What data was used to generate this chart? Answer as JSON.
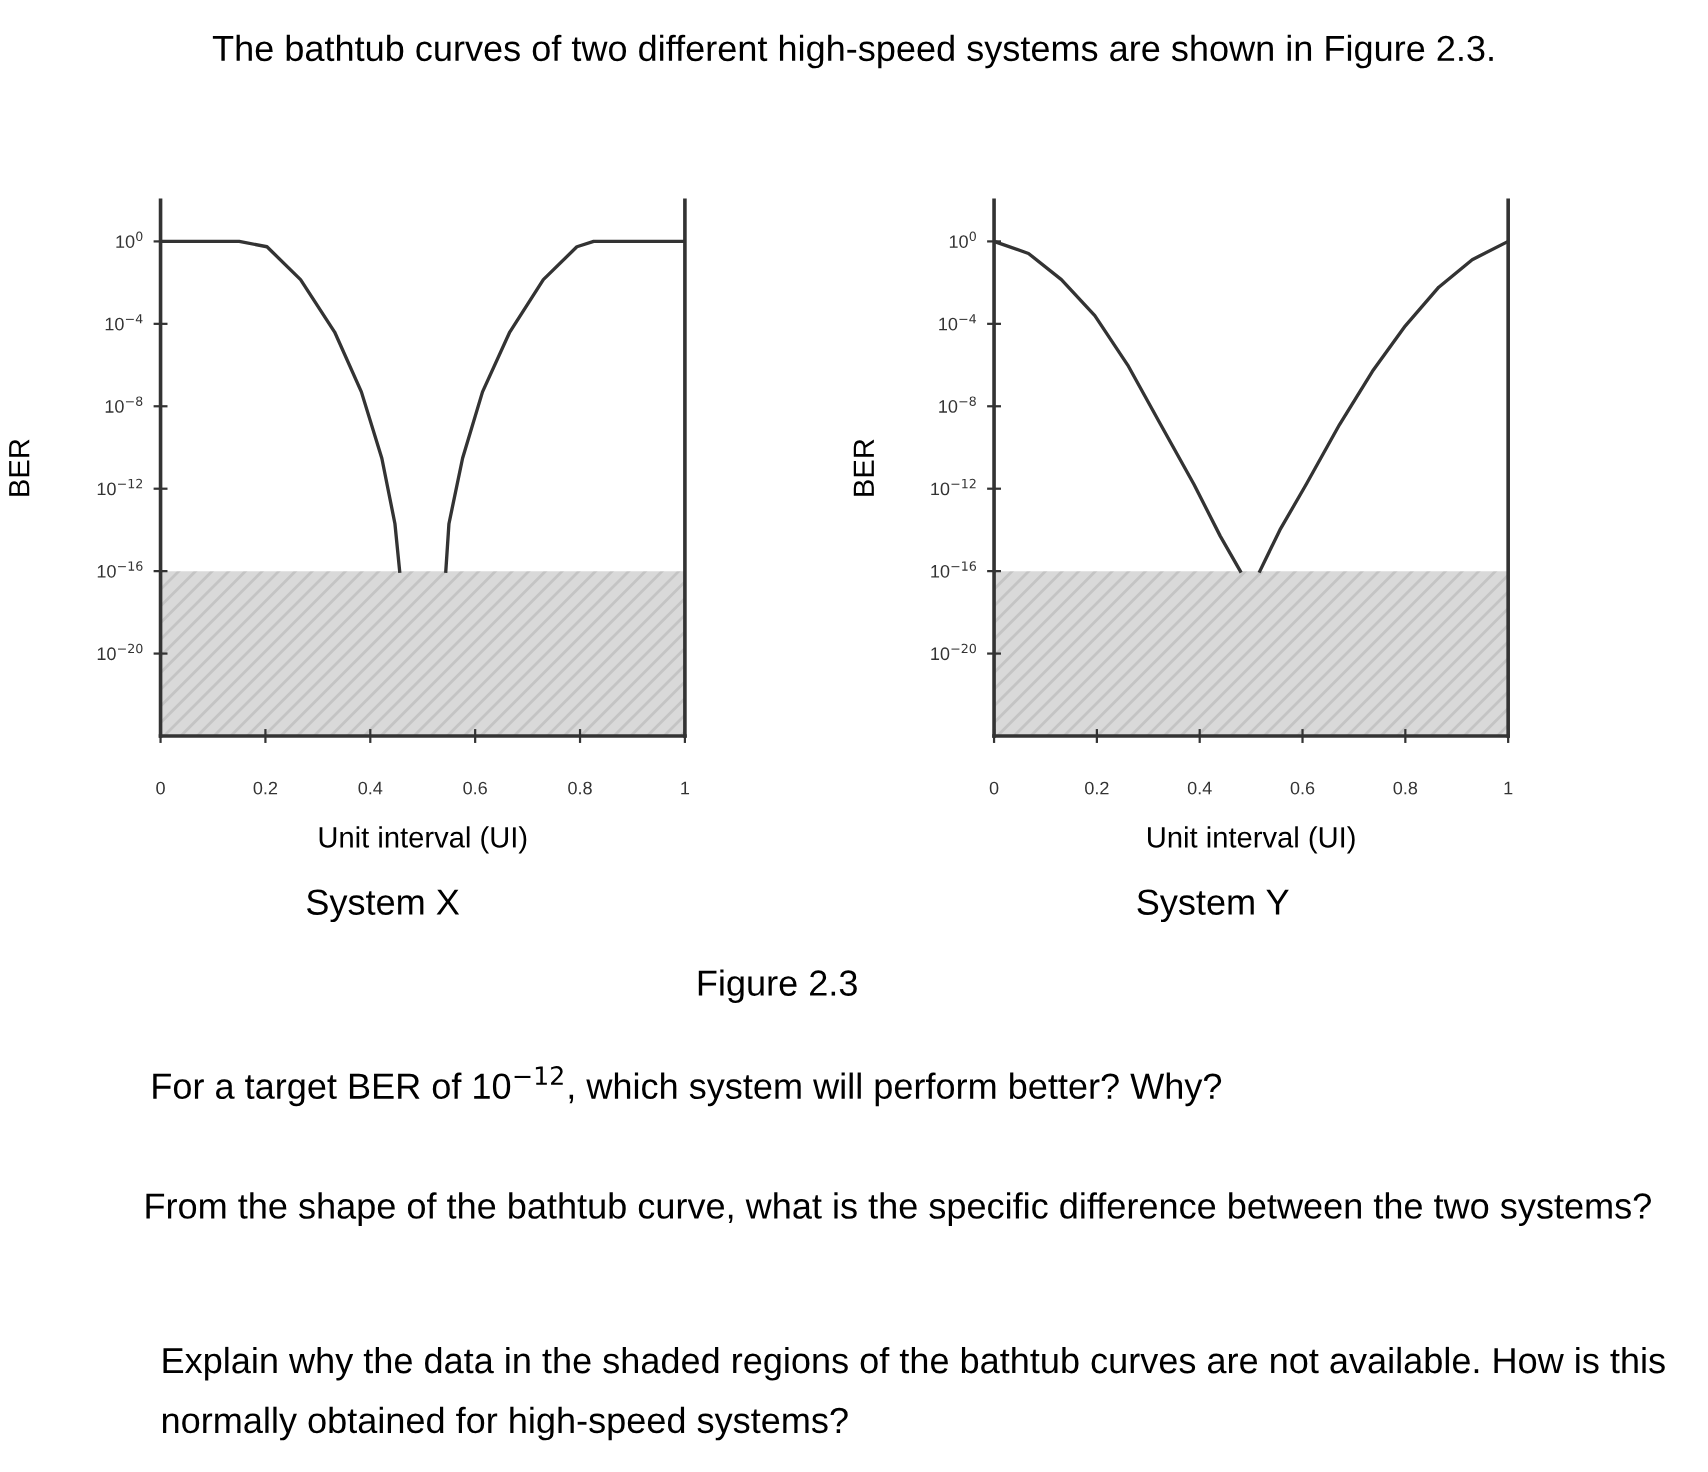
{
  "chart_data": [
    {
      "type": "line",
      "xlabel": "Unit interval (UI)",
      "ylabel": "BER",
      "log": "y",
      "x": [
        0,
        0.15,
        0.203,
        0.267,
        0.332,
        0.383,
        0.422,
        0.447,
        0.456,
        0.5,
        0.544,
        0.55,
        0.576,
        0.614,
        0.666,
        0.73,
        0.794,
        0.826,
        1
      ],
      "series": [
        {
          "color": "#333333",
          "values": [
            1,
            1,
            0.55,
            0.014,
            4e-05,
            5e-08,
            3e-11,
            2e-14,
            1e-16,
            null,
            1e-16,
            2e-14,
            3e-11,
            5e-08,
            4e-05,
            0.014,
            0.55,
            1,
            1
          ]
        }
      ],
      "xlim": [
        0,
        1
      ],
      "xticks": [
        0,
        0.2,
        0.4,
        0.6,
        0.8,
        1
      ],
      "ylim": [
        1e-24,
        100
      ],
      "yticks": [
        {
          "value": 1,
          "label": "10$^{0}$"
        },
        {
          "value": 0.0001,
          "label": "10$^{−4}$"
        },
        {
          "value": 1e-08,
          "label": "10$^{−8}$"
        },
        {
          "value": 1e-12,
          "label": "10$^{−12}$"
        },
        {
          "value": 1e-16,
          "label": "10$^{−16}$"
        },
        {
          "value": 1e-20,
          "label": "10$^{−20}$"
        }
      ],
      "bands": [
        {
          "axis": "y",
          "from": 1e-24,
          "to": 1e-16,
          "color": "#d9d9d9"
        }
      ],
      "grid": false,
      "legend": false,
      "annotations": [
        "The bathtub curves of two different high-speed systems are shown in Figure 2.3.",
        "System X"
      ]
    },
    {
      "type": "line",
      "xlabel": "Unit interval (UI)",
      "ylabel": "BER",
      "log": "y",
      "x": [
        0,
        0.067,
        0.131,
        0.196,
        0.26,
        0.324,
        0.389,
        0.44,
        0.479,
        0.5,
        0.517,
        0.556,
        0.607,
        0.672,
        0.736,
        0.8,
        0.865,
        0.93,
        1
      ],
      "series": [
        {
          "color": "#333333",
          "values": [
            1,
            0.26,
            0.014,
            0.00025,
            1e-06,
            1.3e-09,
            1.6e-12,
            5e-15,
            1e-16,
            null,
            1e-16,
            1e-14,
            1.6e-12,
            1.3e-09,
            5e-07,
            8e-05,
            0.006,
            0.13,
            1
          ]
        }
      ],
      "xlim": [
        0,
        1
      ],
      "xticks": [
        0,
        0.2,
        0.4,
        0.6,
        0.8,
        1
      ],
      "ylim": [
        1e-24,
        100
      ],
      "yticks": [
        {
          "value": 1,
          "label": "10$^{0}$"
        },
        {
          "value": 0.0001,
          "label": "10$^{−4}$"
        },
        {
          "value": 1e-08,
          "label": "10$^{−8}$"
        },
        {
          "value": 1e-12,
          "label": "10$^{−12}$"
        },
        {
          "value": 1e-16,
          "label": "10$^{−16}$"
        },
        {
          "value": 1e-20,
          "label": "10$^{−20}$"
        }
      ],
      "bands": [
        {
          "axis": "y",
          "from": 1e-24,
          "to": 1e-16,
          "color": "#d9d9d9"
        }
      ],
      "grid": false,
      "legend": false,
      "annotations": [
        "System Y",
        "Figure 2.3",
        "For a target BER of 10$^{−12}$, which system will perform better? Why?",
        "From the shape of the bathtub curve, what is the specific difference between the two systems?",
        "Explain why the data in the shaded regions of the bathtub curves are not available. How is this normally obtained for high-speed systems?"
      ]
    }
  ]
}
